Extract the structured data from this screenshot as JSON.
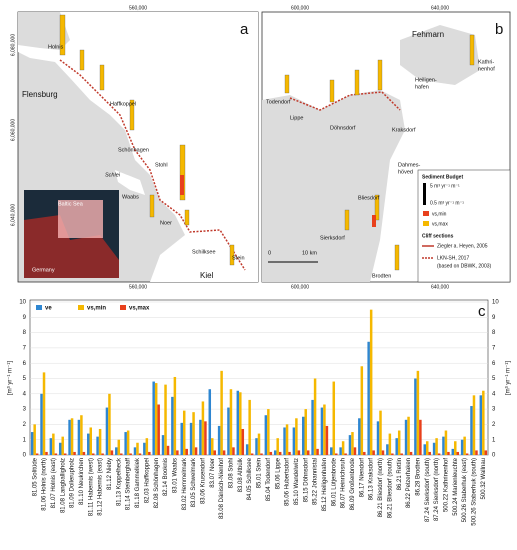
{
  "maps": {
    "a": {
      "panel": "a",
      "xticks": [
        "560,000",
        "560,000"
      ],
      "yticks": [
        "6,080,000",
        "6,060,000",
        "6,040,000"
      ],
      "places": [
        "Holnis",
        "Flensburg",
        "Haffkoppel",
        "Schönhagen",
        "Schlei",
        "Waabs",
        "Stohl",
        "Noer",
        "Schilksee",
        "Stein",
        "Kiel"
      ],
      "inset": [
        "Baltic Sea",
        "Germany"
      ]
    },
    "b": {
      "panel": "b",
      "xticks": [
        "600,000",
        "640,000",
        "600,000",
        "640,000"
      ],
      "places": [
        "Fehmarn",
        "Kathri-",
        "nenhof",
        "Heiligen-",
        "hafen",
        "Todendorf",
        "Lippe",
        "Döhnsdorf",
        "Kraksdorf",
        "Dahmes-",
        "höved",
        "Bliesdorf",
        "Sierksdorf",
        "Brodten"
      ],
      "scale": [
        "0",
        "10 km"
      ],
      "legend": {
        "title": "Sediment Budget",
        "big": "5 m³ yr⁻¹ m⁻¹",
        "small": "0.5 m³ yr⁻¹ m⁻¹",
        "min": "vs,min",
        "max": "vs,max",
        "cliff_title": "Cliff sections",
        "c1": "Ziegler a. Heyen, 2005",
        "c2": "LKN-SH, 2017",
        "c3": "(based on DBWK, 2003)"
      }
    }
  },
  "chart_data": {
    "type": "bar",
    "panel": "c",
    "ylabel": "[m³ yr⁻¹ m⁻¹]",
    "ylim": [
      0,
      10
    ],
    "yticks": [
      0,
      1,
      2,
      3,
      4,
      5,
      6,
      7,
      8,
      9,
      10
    ],
    "grid": true,
    "categories": [
      "81.05 Solitüde",
      "81.06 Holnis (north)",
      "81.07 Holnis (east)",
      "81.08 Langballigholz",
      "81.09 Dollerupholz",
      "81.10 Neukirchen",
      "81.11 Habernis (west)",
      "81.12 Habernis (east)",
      "81.12 Nieby",
      "81.13 Koppelheck",
      "81.14 Steinberghaff",
      "81.18 Gammelkiek",
      "82.03 Haffkoppel",
      "82.08 Schönhagen",
      "82.14 Booknis",
      "83.01 Waabs",
      "83.02 Hemmelmark",
      "83.05 Schwelmark",
      "83.06 Krusendorf",
      "83.07 Noer",
      "83.08 Dänisch-Nienhof",
      "83.08 Stohl",
      "83.08 Altbülk",
      "84.05 Schilksee",
      "85.01 Stein",
      "85.04 Todendorf",
      "85.06 Lippe",
      "85.06 Hubertsdorf",
      "85.10 Wandelwitz",
      "85.15 Döhnsdorf",
      "85.22 Johannistal",
      "85.12 Heiligenhafen",
      "86.01 Lütjenbrode",
      "86.07 Heinrichsruh",
      "86.09 Großenbrode",
      "86.17 Niendorf",
      "86.13 Kraksdorf",
      "86.21 Bliesdorf (north)",
      "86.21 Bliesdorf (south)",
      "86.21 Rettin",
      "86.22 Pelzerhaken",
      "86.28 Brodten",
      "87.24 Sierksdorf (south)",
      "87.24 Sierksdorf (north)",
      "500.22 Kathrinenhof",
      "500.24 Marienleuchte",
      "500.26 Staberhuk (east)",
      "500.26 Staberhuk (south)",
      "500.32 Wallnau"
    ],
    "series": [
      {
        "name": "ve",
        "color": "#2e86d1",
        "values": [
          1.5,
          4.0,
          1.1,
          0.8,
          2.3,
          2.3,
          1.4,
          1.2,
          3.1,
          0.5,
          1.5,
          0.5,
          0.8,
          4.8,
          1.3,
          3.8,
          2.1,
          2.1,
          2.3,
          4.3,
          1.9,
          3.1,
          4.2,
          0.7,
          1.1,
          2.6,
          0.3,
          1.8,
          1.8,
          2.5,
          3.6,
          3.1,
          0.5,
          0.5,
          1.3,
          2.4,
          7.4,
          2.2,
          0.7,
          1.1,
          2.3,
          5.0,
          0.7,
          0.8,
          1.2,
          0.4,
          1.0,
          3.2,
          3.9
        ]
      },
      {
        "name": "vs,min",
        "color": "#f5b800",
        "values": [
          2.0,
          5.4,
          1.4,
          1.2,
          2.4,
          2.6,
          1.8,
          1.7,
          4.0,
          1.0,
          1.6,
          0.8,
          1.1,
          4.7,
          4.6,
          5.1,
          2.9,
          2.8,
          3.5,
          1.1,
          5.5,
          4.3,
          4.1,
          3.6,
          1.4,
          3.0,
          1.1,
          2.0,
          2.4,
          3.0,
          5.0,
          3.3,
          4.8,
          0.9,
          1.5,
          5.8,
          9.5,
          2.9,
          1.4,
          1.6,
          2.5,
          5.5,
          0.9,
          1.1,
          1.6,
          0.9,
          1.2,
          3.9,
          4.2
        ]
      },
      {
        "name": "vs,max",
        "color": "#e8401c",
        "values": [
          0.1,
          0.2,
          0.1,
          0.1,
          0.2,
          0.2,
          0.1,
          0.1,
          0.3,
          0.1,
          0.1,
          0.1,
          0.2,
          3.3,
          0.6,
          0.3,
          0.4,
          0.5,
          2.2,
          0.3,
          0.3,
          0.5,
          1.7,
          0.1,
          0.1,
          0.2,
          0.2,
          0.2,
          0.3,
          0.3,
          0.4,
          1.9,
          0.1,
          0.1,
          0.5,
          0.2,
          0.3,
          0.3,
          0.1,
          0.1,
          0.2,
          2.3,
          0.2,
          0.1,
          0.2,
          0.2,
          0.1,
          0.3,
          0.3
        ]
      }
    ]
  }
}
